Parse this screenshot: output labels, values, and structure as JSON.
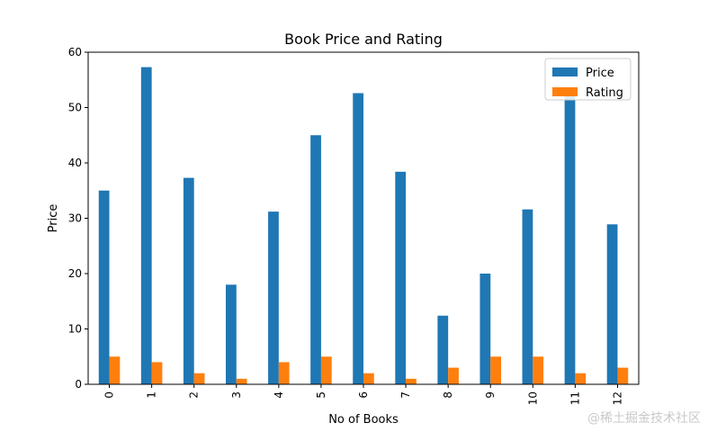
{
  "chart_data": {
    "type": "bar",
    "title": "Book Price and Rating",
    "xlabel": "No of Books",
    "ylabel": "Price",
    "ylim": [
      0,
      60
    ],
    "yticks": [
      0,
      10,
      20,
      30,
      40,
      50,
      60
    ],
    "categories": [
      "0",
      "1",
      "2",
      "3",
      "4",
      "5",
      "6",
      "7",
      "8",
      "9",
      "10",
      "11",
      "12"
    ],
    "series": [
      {
        "name": "Price",
        "color": "#1f77b4",
        "values": [
          35,
          57.3,
          37.3,
          18,
          31.2,
          45,
          52.6,
          38.4,
          12.4,
          20,
          31.6,
          53.5,
          28.9
        ]
      },
      {
        "name": "Rating",
        "color": "#ff7f0e",
        "values": [
          5,
          4,
          2,
          1,
          4,
          5,
          2,
          1,
          3,
          5,
          5,
          2,
          3
        ]
      }
    ],
    "grid": false,
    "legend_position": "top-right"
  },
  "watermark": "@稀土掘金技术社区"
}
